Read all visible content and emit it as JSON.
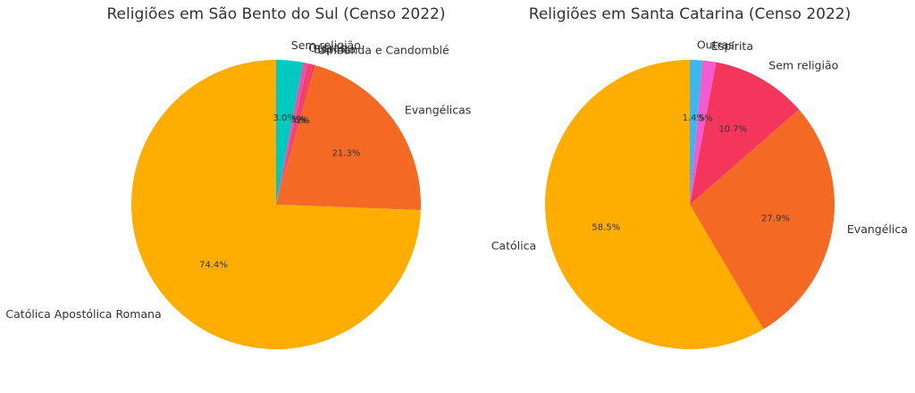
{
  "chart_data": [
    {
      "type": "pie",
      "title": "Religiões em São Bento do Sul (Censo 2022)",
      "categories": [
        "Católica Apostólica Romana",
        "Evangélicas",
        "Umbanda e Candomblé",
        "Espírita",
        "Outras",
        "Sem religião"
      ],
      "values": [
        74.4,
        21.3,
        0.2,
        0.6,
        0.5,
        3.0
      ],
      "value_labels": [
        "74.4%",
        "21.3%",
        "0.2%",
        "0.6%",
        "0.5%",
        "3.0%"
      ],
      "colors": [
        "#ffae00",
        "#f46a25",
        "#f2385a",
        "#f43f6e",
        "#ef4fa6",
        "#00c9c0"
      ]
    },
    {
      "type": "pie",
      "title": "Religiões em Santa Catarina (Censo 2022)",
      "categories": [
        "Católica",
        "Evangélica",
        "Sem religião",
        "Espírita",
        "Outras"
      ],
      "values": [
        58.5,
        27.9,
        10.7,
        1.5,
        1.4
      ],
      "value_labels": [
        "58.5%",
        "27.9%",
        "10.7%",
        "1.5%",
        "1.4%"
      ],
      "colors": [
        "#ffae00",
        "#f46a25",
        "#f5365c",
        "#f65ad0",
        "#3bb7f2"
      ]
    }
  ]
}
